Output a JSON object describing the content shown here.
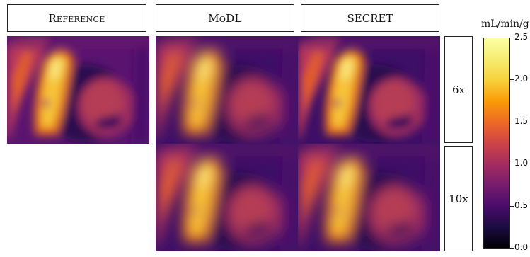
{
  "columns": {
    "reference": "Reference",
    "modl": "MoDL",
    "secret": "SECRET"
  },
  "rows": {
    "r1": "6x",
    "r2": "10x"
  },
  "colorbar": {
    "unit": "mL/min/g",
    "ticks": [
      "2.5",
      "2.0",
      "1.5",
      "1.0",
      "0.5",
      "0.0"
    ],
    "colormap": "inferno",
    "range": [
      0.0,
      2.5
    ]
  }
}
